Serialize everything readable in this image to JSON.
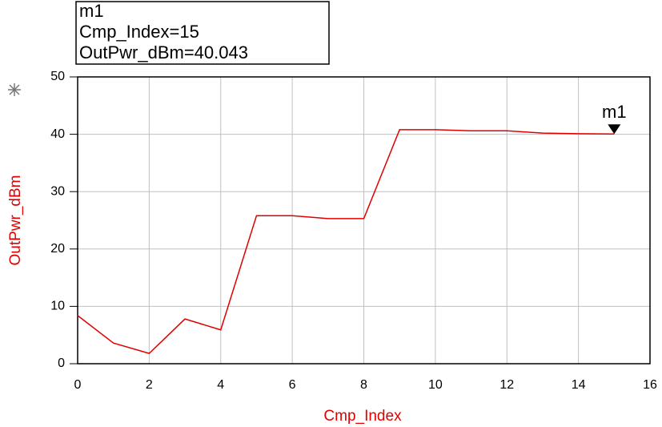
{
  "chart_data": {
    "type": "line",
    "x_label": "Cmp_Index",
    "y_label": "OutPwr_dBm",
    "x": [
      0,
      1,
      2,
      3,
      4,
      5,
      6,
      7,
      8,
      9,
      10,
      11,
      12,
      13,
      14,
      15
    ],
    "series": [
      {
        "name": "OutPwr_dBm",
        "color": "#e00000",
        "values": [
          8.4,
          3.6,
          1.8,
          7.8,
          5.9,
          25.8,
          25.8,
          25.3,
          25.3,
          40.8,
          40.8,
          40.6,
          40.6,
          40.2,
          40.1,
          40.043
        ]
      }
    ],
    "xlim": [
      0,
      16
    ],
    "xticks": [
      0,
      2,
      4,
      6,
      8,
      10,
      12,
      14,
      16
    ],
    "ylim": [
      0,
      50
    ],
    "yticks": [
      0,
      10,
      20,
      30,
      40,
      50
    ],
    "grid": true,
    "grid_color": "#c0c0c0",
    "marker": {
      "name": "m1",
      "index": 15,
      "label_lines": [
        "m1",
        "Cmp_Index=15",
        "OutPwr_dBm=40.043"
      ]
    }
  }
}
